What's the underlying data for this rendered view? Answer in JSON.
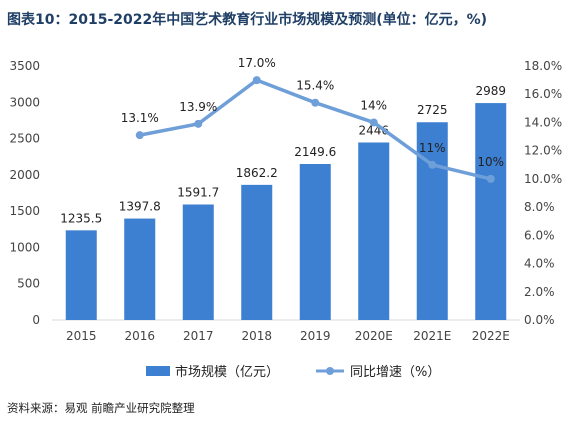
{
  "title": "图表10：2015-2022年中国艺术教育行业市场规模及预测(单位：亿元，%)",
  "source": "资料来源：易观 前瞻产业研究院整理",
  "colors": {
    "bar": "#3d7fd0",
    "line": "#6f9fd8",
    "axis_text": "#444444",
    "grid": "#d9d9d9",
    "title": "#1f3f66"
  },
  "chart_data": {
    "type": "bar",
    "categories": [
      "2015",
      "2016",
      "2017",
      "2018",
      "2019",
      "2020E",
      "2021E",
      "2022E"
    ],
    "series": [
      {
        "name": "市场规模（亿元）",
        "type": "bar",
        "axis": "left",
        "values": [
          1235.5,
          1397.8,
          1591.7,
          1862.2,
          2149.6,
          2446,
          2725,
          2989
        ],
        "labels": [
          "1235.5",
          "1397.8",
          "1591.7",
          "1862.2",
          "2149.6",
          "2446",
          "2725",
          "2989"
        ]
      },
      {
        "name": "同比增速（%）",
        "type": "line",
        "axis": "right",
        "values": [
          null,
          13.1,
          13.9,
          17.0,
          15.4,
          14.0,
          11.0,
          10.0
        ],
        "labels": [
          "",
          "13.1%",
          "13.9%",
          "17.0%",
          "15.4%",
          "14%",
          "11%",
          "10%"
        ]
      }
    ],
    "y_left": {
      "min": 0,
      "max": 3500,
      "step": 500,
      "ticks": [
        "0",
        "500",
        "1000",
        "1500",
        "2000",
        "2500",
        "3000",
        "3500"
      ]
    },
    "y_right": {
      "min": 0,
      "max": 18,
      "step": 2,
      "ticks": [
        "0.0%",
        "2.0%",
        "4.0%",
        "6.0%",
        "8.0%",
        "10.0%",
        "12.0%",
        "14.0%",
        "16.0%",
        "18.0%"
      ]
    },
    "legend_position": "bottom",
    "grid": false
  }
}
